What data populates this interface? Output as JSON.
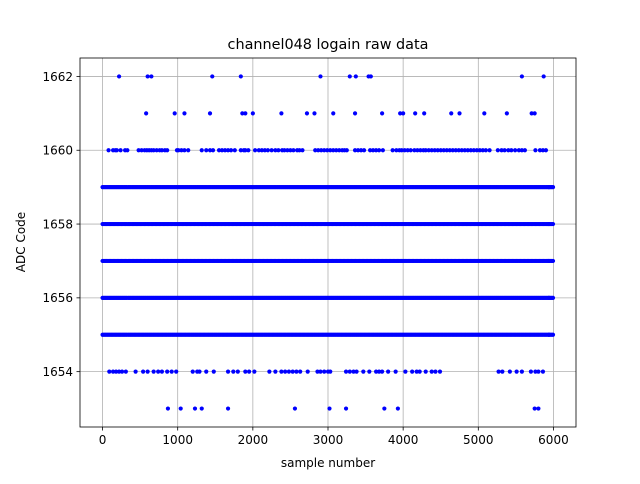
{
  "chart_data": {
    "type": "scatter",
    "title": "channel048 logain raw data",
    "xlabel": "sample number",
    "ylabel": "ADC Code",
    "xlim": [
      -300,
      6300
    ],
    "ylim": [
      1652.5,
      1662.5
    ],
    "xticks": [
      0,
      1000,
      2000,
      3000,
      4000,
      5000,
      6000
    ],
    "yticks": [
      1654,
      1656,
      1658,
      1660,
      1662
    ],
    "grid": true,
    "marker_color": "#0000ff",
    "sample_count": 6000,
    "dense_levels": [
      1655,
      1656,
      1657,
      1658,
      1659
    ],
    "series": [
      {
        "values_by_level": [
          {
            "y": 1662,
            "x": [
              220,
              600,
              650,
              1460,
              1840,
              2900,
              3290,
              3370,
              3540,
              3570,
              5580,
              5870
            ]
          },
          {
            "y": 1661,
            "x": [
              580,
              960,
              1090,
              1430,
              1860,
              1900,
              2000,
              2380,
              2720,
              2820,
              3070,
              3360,
              3720,
              3960,
              4000,
              4160,
              4280,
              4640,
              4750,
              5080,
              5380,
              5710,
              5750
            ]
          },
          {
            "y": 1660,
            "x": [
              80,
              140,
              170,
              190,
              240,
              300,
              330,
              480,
              520,
              560,
              590,
              620,
              650,
              680,
              720,
              760,
              790,
              830,
              860,
              990,
              1010,
              1050,
              1090,
              1140,
              1320,
              1380,
              1430,
              1470,
              1550,
              1590,
              1630,
              1670,
              1710,
              1760,
              1840,
              1880,
              1900,
              1940,
              2030,
              2080,
              2120,
              2160,
              2200,
              2250,
              2300,
              2340,
              2390,
              2420,
              2460,
              2500,
              2540,
              2590,
              2620,
              2660,
              2830,
              2870,
              2910,
              2950,
              2990,
              3030,
              3070,
              3110,
              3150,
              3190,
              3220,
              3250,
              3360,
              3400,
              3440,
              3480,
              3560,
              3600,
              3640,
              3680,
              3730,
              3860,
              3910,
              3950,
              3980,
              4020,
              4060,
              4100,
              4150,
              4190,
              4230,
              4270,
              4300,
              4340,
              4380,
              4420,
              4460,
              4500,
              4540,
              4580,
              4620,
              4660,
              4700,
              4740,
              4780,
              4820,
              4860,
              4900,
              4940,
              4980,
              5020,
              5060,
              5100,
              5150,
              5260,
              5310,
              5350,
              5400,
              5440,
              5490,
              5540,
              5580,
              5620,
              5760,
              5820,
              5860,
              5900
            ]
          },
          {
            "y": 1654,
            "x": [
              90,
              140,
              180,
              220,
              260,
              310,
              440,
              540,
              600,
              680,
              740,
              790,
              860,
              920,
              980,
              1200,
              1260,
              1290,
              1380,
              1480,
              1670,
              1740,
              1800,
              1900,
              1950,
              2020,
              2220,
              2300,
              2380,
              2430,
              2480,
              2530,
              2580,
              2630,
              2730,
              2860,
              2900,
              2950,
              3000,
              3030,
              3240,
              3290,
              3340,
              3380,
              3470,
              3550,
              3640,
              3680,
              3720,
              3800,
              3900,
              4030,
              4120,
              4180,
              4220,
              4300,
              4380,
              4430,
              4490,
              5270,
              5320,
              5420,
              5510,
              5580,
              5700,
              5760,
              5800,
              5860
            ]
          },
          {
            "y": 1653,
            "x": [
              870,
              1040,
              1230,
              1320,
              1670,
              2560,
              3020,
              3240,
              3750,
              3930,
              5750,
              5800
            ]
          }
        ]
      }
    ]
  }
}
